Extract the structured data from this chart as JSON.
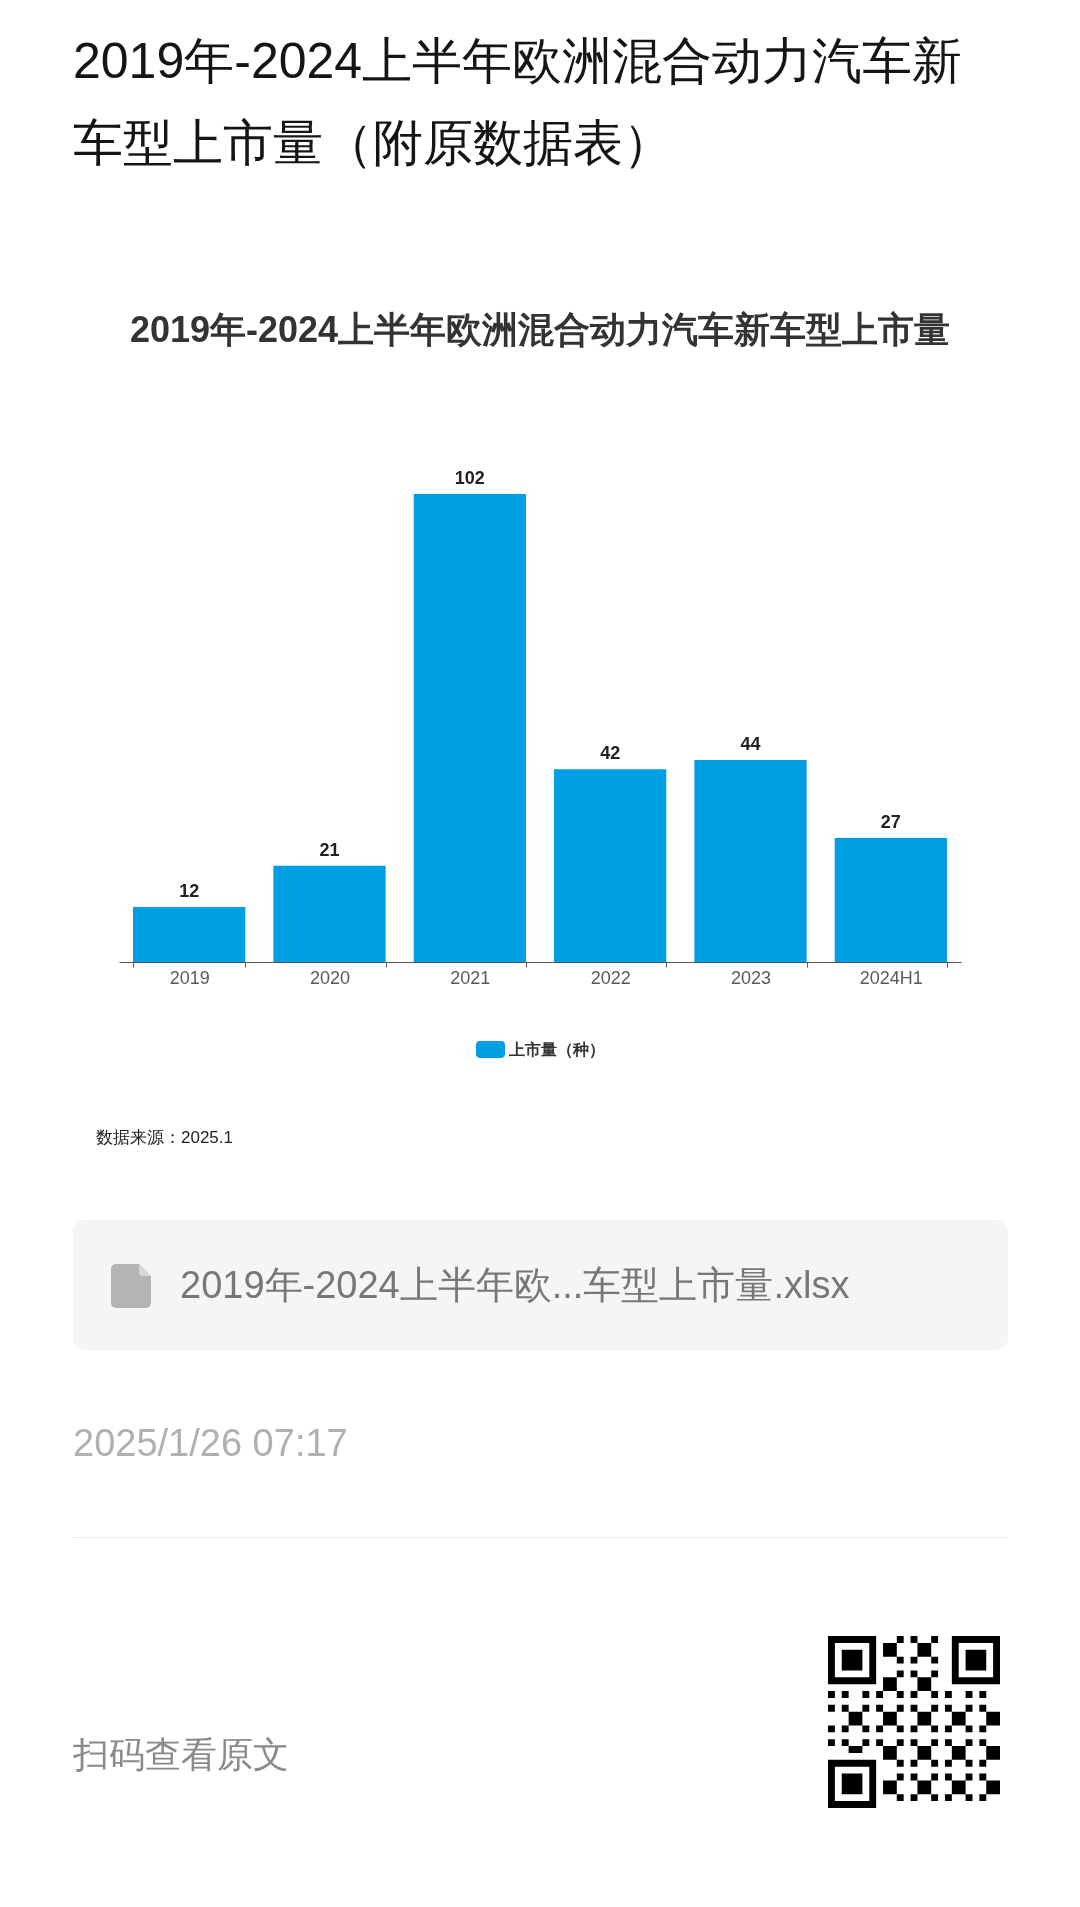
{
  "chart_data": {
    "type": "bar",
    "title": "2019年-2024上半年欧洲混合动力汽车新车型上市量（附原数据表）",
    "subtitle": "2019年-2024上半年欧洲混合动力汽车新车型上市量",
    "categories": [
      "2019",
      "2020",
      "2021",
      "2022",
      "2023",
      "2024H1"
    ],
    "series": [
      {
        "name": "上市量（种）",
        "color": "#009fe3",
        "values": [
          12,
          21,
          102,
          42,
          44,
          27
        ]
      }
    ],
    "data_labels": true,
    "legend": "bottom",
    "annotations": [
      "数据来源：2025.1",
      "2019年-2024上半年欧...车型上市量.xlsx",
      "2025/1/26 07:17",
      "扫码查看原文"
    ]
  }
}
